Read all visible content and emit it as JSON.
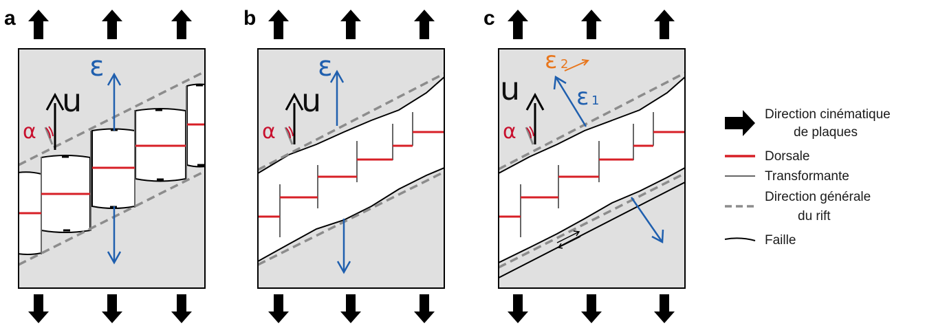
{
  "figure": {
    "panels": [
      {
        "letter": "a",
        "symbols": {
          "velocity": "u",
          "strain": "ε",
          "angle": "α"
        }
      },
      {
        "letter": "b",
        "symbols": {
          "velocity": "u",
          "strain": "ε",
          "angle": "α"
        }
      },
      {
        "letter": "c",
        "symbols": {
          "velocity": "u",
          "strain1_base": "ε",
          "strain1_sub": "1",
          "strain2_base": "ε",
          "strain2_sub": "2",
          "angle": "α"
        }
      }
    ],
    "legend": {
      "plate_motion": {
        "line1": "Direction cinématique",
        "line2": "de plaques"
      },
      "ridge": "Dorsale",
      "transform": "Transformante",
      "rift_trend": {
        "line1": "Direction générale",
        "line2": "du rift"
      },
      "fault": "Faille"
    },
    "colors": {
      "ridge": "#d71f26",
      "strain": "#1f5fae",
      "strain2": "#e8761c",
      "angle": "#c8102e",
      "panel_fill": "#e0e0e0",
      "dashed": "#8c8c8c",
      "transform": "#666666"
    }
  }
}
